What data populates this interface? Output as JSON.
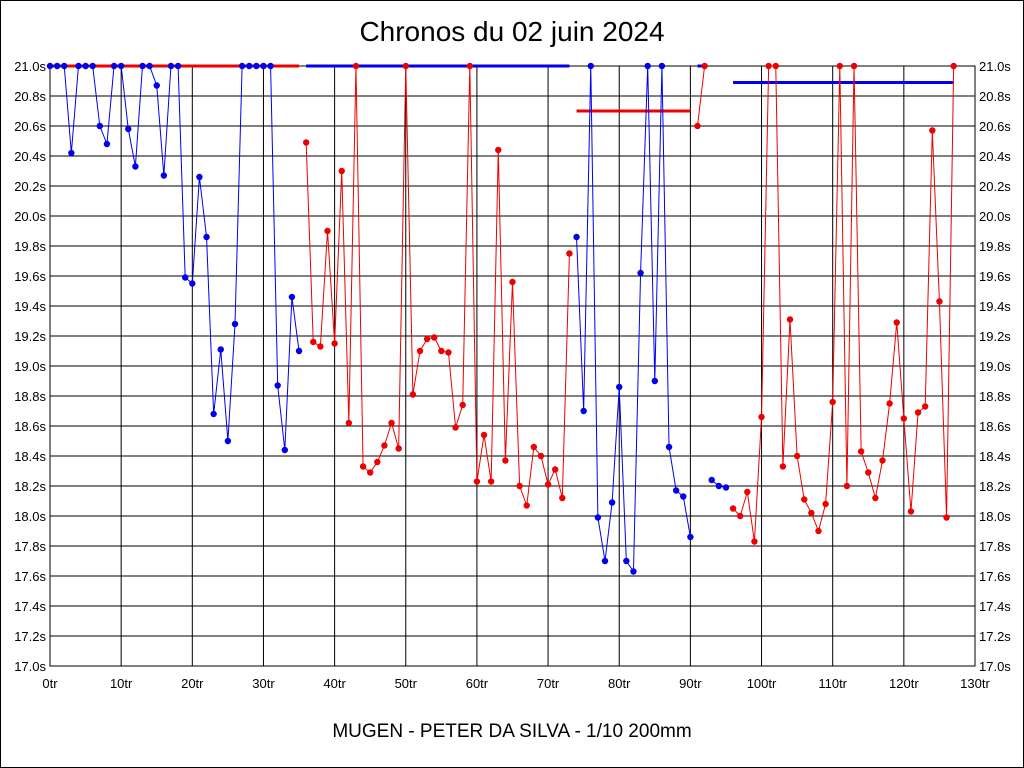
{
  "chart_data": {
    "type": "line",
    "title": "Chronos du 02 juin 2024",
    "subtitle": "MUGEN - PETER DA SILVA - 1/10 200mm",
    "xlabel": "",
    "ylabel": "",
    "xlim": [
      0,
      130
    ],
    "ylim": [
      17.0,
      21.0
    ],
    "grid": true,
    "x_ticks": [
      "0tr",
      "10tr",
      "20tr",
      "30tr",
      "40tr",
      "50tr",
      "60tr",
      "70tr",
      "80tr",
      "90tr",
      "100tr",
      "110tr",
      "120tr",
      "130tr"
    ],
    "y_ticks": [
      "21.0s",
      "20.8s",
      "20.6s",
      "20.4s",
      "20.2s",
      "20.0s",
      "19.8s",
      "19.6s",
      "19.4s",
      "19.2s",
      "19.0s",
      "18.8s",
      "18.6s",
      "18.4s",
      "18.2s",
      "18.0s",
      "17.8s",
      "17.6s",
      "17.4s",
      "17.2s",
      "17.0s"
    ],
    "colors": {
      "blue": "#0000ee",
      "red": "#ee0000"
    },
    "series": [
      {
        "name": "blue-1",
        "color": "blue",
        "x": [
          0,
          1,
          2,
          3,
          4,
          5,
          6,
          7,
          8,
          9,
          10,
          11,
          12,
          13,
          14,
          15,
          16,
          17,
          18,
          19,
          20,
          21,
          22,
          23,
          24,
          25,
          26,
          27,
          28,
          29,
          30,
          31,
          32,
          33,
          34,
          35
        ],
        "y": [
          21.0,
          21.0,
          21.0,
          20.42,
          21.0,
          21.0,
          21.0,
          20.6,
          20.48,
          21.0,
          21.0,
          20.58,
          20.33,
          21.0,
          21.0,
          20.87,
          20.27,
          21.0,
          21.0,
          19.59,
          19.55,
          20.26,
          19.86,
          18.68,
          19.11,
          18.5,
          19.28,
          21.0,
          21.0,
          21.0,
          21.0,
          21.0,
          18.87,
          18.44,
          19.46,
          19.1
        ]
      },
      {
        "name": "red-1",
        "color": "red",
        "x": [
          36,
          37,
          38,
          39,
          40,
          41,
          42,
          43,
          44,
          45,
          46,
          47,
          48,
          49,
          50,
          51,
          52,
          53,
          54,
          55,
          56,
          57,
          58,
          59,
          60,
          61,
          62,
          63,
          64,
          65,
          66,
          67,
          68,
          69,
          70,
          71,
          72,
          73
        ],
        "y": [
          20.49,
          19.16,
          19.13,
          19.9,
          19.15,
          20.3,
          18.62,
          21.0,
          18.33,
          18.29,
          18.36,
          18.47,
          18.62,
          18.45,
          21.0,
          18.81,
          19.1,
          19.18,
          19.19,
          19.1,
          19.09,
          18.59,
          18.74,
          21.0,
          18.23,
          18.54,
          18.23,
          20.44,
          18.37,
          19.56,
          18.2,
          18.07,
          18.46,
          18.4,
          18.21,
          18.31,
          18.12,
          19.75
        ]
      },
      {
        "name": "blue-2",
        "color": "blue",
        "x": [
          74,
          75,
          76,
          77,
          78,
          79,
          80,
          81,
          82,
          83,
          84,
          85,
          86,
          87,
          88,
          89,
          90
        ],
        "y": [
          19.86,
          18.7,
          21.0,
          17.99,
          17.7,
          18.09,
          18.86,
          17.7,
          17.63,
          19.62,
          21.0,
          18.9,
          21.0,
          18.46,
          18.17,
          18.13,
          17.86
        ]
      },
      {
        "name": "red-2",
        "color": "red",
        "x": [
          91,
          92
        ],
        "y": [
          20.6,
          21.0
        ]
      },
      {
        "name": "blue-3",
        "color": "blue",
        "x": [
          93,
          94,
          95
        ],
        "y": [
          18.24,
          18.2,
          18.19
        ]
      },
      {
        "name": "red-3",
        "color": "red",
        "x": [
          96,
          97,
          98,
          99,
          100,
          101,
          102,
          103,
          104,
          105,
          106,
          107,
          108,
          109,
          110,
          111,
          112,
          113,
          114,
          115,
          116,
          117,
          118,
          119,
          120,
          121,
          122,
          123,
          124,
          125,
          126,
          127
        ],
        "y": [
          18.05,
          18.0,
          18.16,
          17.83,
          18.66,
          21.0,
          21.0,
          18.33,
          19.31,
          18.4,
          18.11,
          18.02,
          17.9,
          18.08,
          18.76,
          21.0,
          18.2,
          21.0,
          18.43,
          18.29,
          18.12,
          18.37,
          18.75,
          19.29,
          18.65,
          18.03,
          18.69,
          18.73,
          20.57,
          19.43,
          17.99,
          21.0
        ]
      }
    ],
    "reference_lines": [
      {
        "color": "red",
        "x1": 0,
        "x2": 35,
        "y": 21.0
      },
      {
        "color": "blue",
        "x1": 36,
        "x2": 73,
        "y": 21.0
      },
      {
        "color": "red",
        "x1": 74,
        "x2": 90,
        "y": 20.7
      },
      {
        "color": "blue",
        "x1": 91,
        "x2": 92,
        "y": 21.0
      },
      {
        "color": "blue",
        "x1": 96,
        "x2": 127,
        "y": 20.89
      }
    ]
  }
}
